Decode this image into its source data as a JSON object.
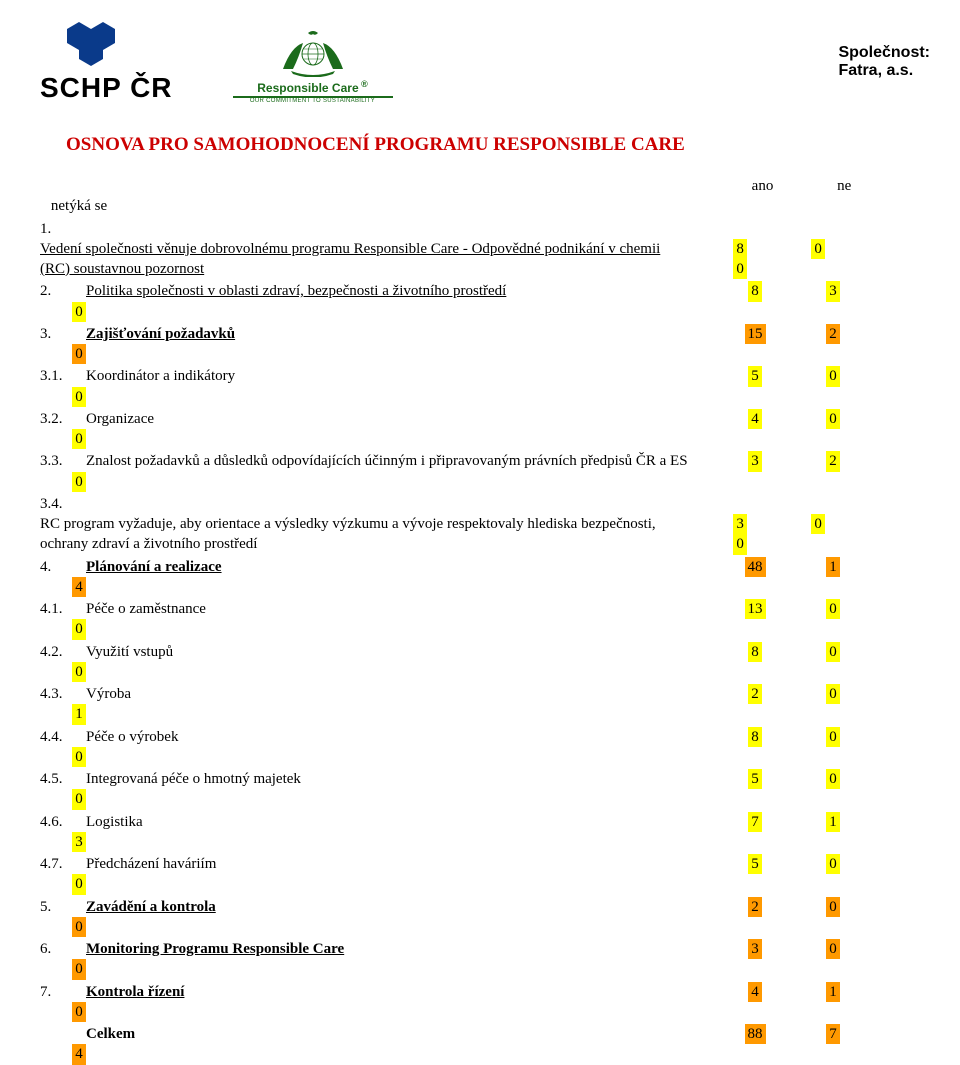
{
  "header": {
    "schp_label": "SCHP ČR",
    "rc_title": "Responsible Care",
    "rc_sub": "OUR COMMITMENT TO SUSTAINABILITY",
    "company_label": "Společnost:",
    "company_name": "Fatra, a.s.",
    "logo_colors": {
      "blue": "#0a3a8a",
      "green": "#1b6b1b"
    }
  },
  "title": "OSNOVA PRO SAMOHODNOCENÍ PROGRAMU RESPONSIBLE CARE",
  "columns": {
    "a": "ano",
    "b": "ne",
    "c": "netýká se"
  },
  "colors": {
    "title": "#cc0000",
    "highlight_yellow": "#ffff00",
    "highlight_orange": "#ff9900",
    "text": "#000000"
  },
  "rows": [
    {
      "num": "1.",
      "text": "Vedení společnosti věnuje dobrovolnému programu Responsible Care - Odpovědné podnikání v chemii (RC) soustavnou pozornost",
      "u": true,
      "a": "8",
      "b": "0",
      "c": "0",
      "hl": "y",
      "multiline": true
    },
    {
      "num": "2.",
      "text": "Politika společnosti v oblasti zdraví, bezpečnosti a životního prostředí",
      "u": true,
      "a": "8",
      "b": "3",
      "c": "0",
      "hl": "y"
    },
    {
      "num": "3.",
      "text": "Zajišťování požadavků",
      "u": true,
      "b_": true,
      "a": "15",
      "b": "2",
      "c": "0",
      "hl": "o"
    },
    {
      "num": "3.1.",
      "text": "Koordinátor a indikátory",
      "a": "5",
      "b": "0",
      "c": "0",
      "hl": "y"
    },
    {
      "num": "3.2.",
      "text": "Organizace",
      "a": "4",
      "b": "0",
      "c": "0",
      "hl": "y"
    },
    {
      "num": "3.3.",
      "text": "Znalost požadavků a důsledků odpovídajících účinným i připravovaným právních předpisů ČR a ES",
      "a": "3",
      "b": "2",
      "c": "0",
      "hl": "y"
    },
    {
      "num": "3.4.",
      "text": "RC program vyžaduje, aby orientace a výsledky výzkumu a vývoje respektovaly hlediska bezpečnosti, ochrany zdraví a životního prostředí",
      "a": "3",
      "b": "0",
      "c": "0",
      "hl": "y",
      "multiline": true
    },
    {
      "num": "4.",
      "text": "Plánování a realizace",
      "u": true,
      "b_": true,
      "a": "48",
      "b": "1",
      "c": "4",
      "hl": "o"
    },
    {
      "num": "4.1.",
      "text": "Péče o zaměstnance",
      "a": "13",
      "b": "0",
      "c": "0",
      "hl": "y"
    },
    {
      "num": "4.2.",
      "text": "Využití vstupů",
      "a": "8",
      "b": "0",
      "c": "0",
      "hl": "y"
    },
    {
      "num": "4.3.",
      "text": "Výroba",
      "a": "2",
      "b": "0",
      "c": "1",
      "hl": "y"
    },
    {
      "num": "4.4.",
      "text": "Péče o výrobek",
      "a": "8",
      "b": "0",
      "c": "0",
      "hl": "y"
    },
    {
      "num": "4.5.",
      "text": "Integrovaná péče o hmotný majetek",
      "a": "5",
      "b": "0",
      "c": "0",
      "hl": "y"
    },
    {
      "num": "4.6.",
      "text": "Logistika",
      "a": "7",
      "b": "1",
      "c": "3",
      "hl": "y"
    },
    {
      "num": "4.7.",
      "text": "Předcházení haváriím",
      "a": "5",
      "b": "0",
      "c": "0",
      "hl": "y"
    },
    {
      "num": "5.",
      "text": "Zavádění a kontrola",
      "u": true,
      "b_": true,
      "a": "2",
      "b": "0",
      "c": "0",
      "hl": "o"
    },
    {
      "num": "6.",
      "text": "Monitoring Programu Responsible Care",
      "u": true,
      "b_": true,
      "a": "3",
      "b": "0",
      "c": "0",
      "hl": "o"
    },
    {
      "num": "7.",
      "text": "Kontrola řízení",
      "u": true,
      "b_": true,
      "a": "4",
      "b": "1",
      "c": "0",
      "hl": "o"
    },
    {
      "num": "",
      "text": "Celkem",
      "b_": true,
      "a": "88",
      "b": "7",
      "c": "4",
      "hl": "o"
    }
  ]
}
